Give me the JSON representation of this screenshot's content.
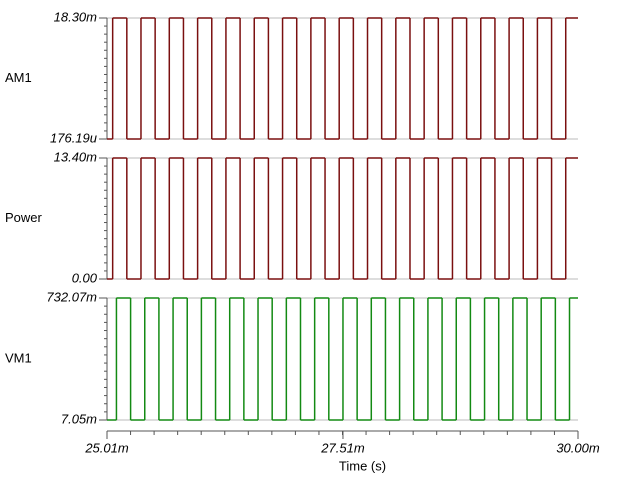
{
  "chart_data": [
    {
      "type": "step",
      "xlim": [
        0.02501,
        0.03
      ],
      "ylim": [
        0.00017619,
        0.0183
      ],
      "yticks": [
        {
          "value": 0.0183,
          "label": "18.30m"
        },
        {
          "value": 0.00017619,
          "label": "176.19u"
        }
      ],
      "x": [
        0.02501,
        0.02507,
        0.02522,
        0.02537,
        0.02552,
        0.02567,
        0.02582,
        0.02597,
        0.02612,
        0.02627,
        0.02642,
        0.02657,
        0.02672,
        0.02687,
        0.02702,
        0.02717,
        0.02732,
        0.02747,
        0.02762,
        0.02777,
        0.02792,
        0.02807,
        0.02822,
        0.02837,
        0.02852,
        0.02867,
        0.02882,
        0.02897,
        0.02912,
        0.02927,
        0.02942,
        0.02957,
        0.02972,
        0.02987
      ],
      "series": [
        {
          "name": "AM1",
          "color": "#7a0f0f",
          "values": [
            0.00017619,
            0.0183,
            0.00017619,
            0.0183,
            0.00017619,
            0.0183,
            0.00017619,
            0.0183,
            0.00017619,
            0.0183,
            0.00017619,
            0.0183,
            0.00017619,
            0.0183,
            0.00017619,
            0.0183,
            0.00017619,
            0.0183,
            0.00017619,
            0.0183,
            0.00017619,
            0.0183,
            0.00017619,
            0.0183,
            0.00017619,
            0.0183,
            0.00017619,
            0.0183,
            0.00017619,
            0.0183,
            0.00017619,
            0.0183,
            0.00017619,
            0.0183
          ]
        }
      ]
    },
    {
      "type": "step",
      "xlim": [
        0.02501,
        0.03
      ],
      "ylim": [
        0,
        0.0134
      ],
      "yticks": [
        {
          "value": 0.0134,
          "label": "13.40m"
        },
        {
          "value": 0,
          "label": "0.00"
        }
      ],
      "x": [
        0.02501,
        0.02507,
        0.02522,
        0.02537,
        0.02552,
        0.02567,
        0.02582,
        0.02597,
        0.02612,
        0.02627,
        0.02642,
        0.02657,
        0.02672,
        0.02687,
        0.02702,
        0.02717,
        0.02732,
        0.02747,
        0.02762,
        0.02777,
        0.02792,
        0.02807,
        0.02822,
        0.02837,
        0.02852,
        0.02867,
        0.02882,
        0.02897,
        0.02912,
        0.02927,
        0.02942,
        0.02957,
        0.02972,
        0.02987
      ],
      "series": [
        {
          "name": "Power",
          "color": "#7a0f0f",
          "values": [
            0,
            0.0134,
            0,
            0.0134,
            0,
            0.0134,
            0,
            0.0134,
            0,
            0.0134,
            0,
            0.0134,
            0,
            0.0134,
            0,
            0.0134,
            0,
            0.0134,
            0,
            0.0134,
            0,
            0.0134,
            0,
            0.0134,
            0,
            0.0134,
            0,
            0.0134,
            0,
            0.0134,
            0,
            0.0134,
            0,
            0.0134
          ]
        }
      ]
    },
    {
      "type": "step",
      "xlim": [
        0.02501,
        0.03
      ],
      "ylim": [
        0.00705,
        0.73207
      ],
      "yticks": [
        {
          "value": 0.73207,
          "label": "732.07m"
        },
        {
          "value": 0.00705,
          "label": "7.05m"
        }
      ],
      "xticks": [
        {
          "value": 0.02501,
          "label": "25.01m"
        },
        {
          "value": 0.02751,
          "label": "27.51m"
        },
        {
          "value": 0.03,
          "label": "30.00m"
        }
      ],
      "xlabel": "Time (s)",
      "x": [
        0.02501,
        0.02511,
        0.02526,
        0.02541,
        0.02556,
        0.02571,
        0.02586,
        0.02601,
        0.02616,
        0.02631,
        0.02646,
        0.02661,
        0.02676,
        0.02691,
        0.02706,
        0.02721,
        0.02736,
        0.02751,
        0.02766,
        0.02781,
        0.02796,
        0.02811,
        0.02826,
        0.02841,
        0.02856,
        0.02871,
        0.02886,
        0.02901,
        0.02916,
        0.02931,
        0.02946,
        0.02961,
        0.02976,
        0.02991
      ],
      "series": [
        {
          "name": "VM1",
          "color": "#138a13",
          "values": [
            0.00705,
            0.73207,
            0.00705,
            0.73207,
            0.00705,
            0.73207,
            0.00705,
            0.73207,
            0.00705,
            0.73207,
            0.00705,
            0.73207,
            0.00705,
            0.73207,
            0.00705,
            0.73207,
            0.00705,
            0.73207,
            0.00705,
            0.73207,
            0.00705,
            0.73207,
            0.00705,
            0.73207,
            0.00705,
            0.73207,
            0.00705,
            0.73207,
            0.00705,
            0.73207,
            0.00705,
            0.73207,
            0.00705,
            0.73207
          ]
        }
      ]
    }
  ]
}
